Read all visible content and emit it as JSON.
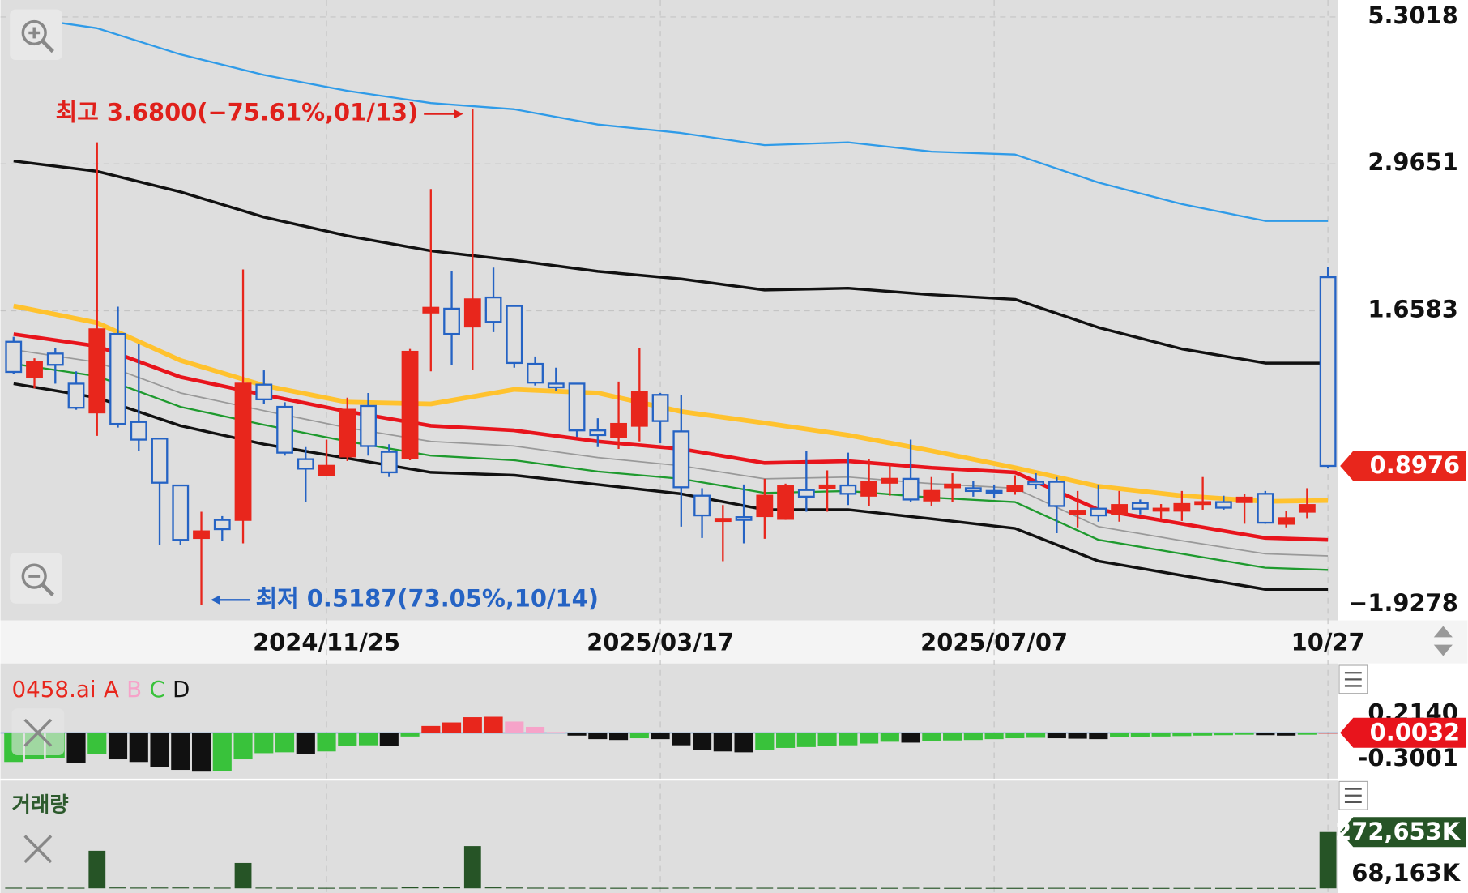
{
  "chart_data": [
    {
      "type": "candlestick",
      "log_scale": true,
      "grid": true,
      "up_color": "#e8261c",
      "down_color": "#2563c4",
      "categories": [
        null,
        null,
        null,
        null,
        null,
        null,
        null,
        null,
        null,
        null,
        null,
        null,
        null,
        null,
        null,
        "2024/11/25",
        null,
        null,
        null,
        null,
        null,
        null,
        null,
        null,
        null,
        null,
        null,
        null,
        null,
        null,
        null,
        "2025/03/17",
        null,
        null,
        null,
        null,
        null,
        null,
        null,
        null,
        null,
        null,
        null,
        null,
        null,
        null,
        null,
        "2025/07/07",
        null,
        null,
        null,
        null,
        null,
        null,
        null,
        null,
        null,
        null,
        null,
        null,
        null,
        null,
        null,
        "10/27"
      ],
      "open": [
        1.467,
        1.276,
        1.4,
        1.243,
        1.109,
        1.513,
        1.068,
        1.0,
        0.831,
        0.675,
        0.725,
        0.725,
        1.238,
        1.134,
        0.922,
        0.865,
        0.932,
        1.138,
        0.949,
        0.925,
        1.647,
        1.672,
        1.558,
        1.748,
        1.69,
        1.344,
        1.243,
        1.243,
        1.033,
        1.007,
        1.052,
        1.189,
        1.029,
        0.798,
        0.722,
        0.733,
        0.736,
        0.728,
        0.816,
        0.822,
        0.831,
        0.798,
        0.84,
        0.853,
        0.783,
        0.825,
        0.822,
        0.813,
        0.813,
        0.843,
        0.843,
        0.741,
        0.758,
        0.741,
        0.775,
        0.752,
        0.752,
        0.772,
        0.778,
        0.778,
        0.804,
        0.714,
        0.749,
        1.894
      ],
      "high": [
        1.496,
        1.374,
        1.431,
        1.305,
        3.229,
        1.685,
        1.452,
        1.0,
        0.831,
        0.749,
        0.736,
        1.953,
        1.31,
        1.155,
        0.967,
        0.996,
        1.176,
        1.198,
        0.978,
        1.426,
        2.684,
        1.938,
        3.68,
        1.967,
        1.69,
        1.384,
        1.324,
        1.243,
        1.084,
        1.253,
        1.431,
        1.198,
        1.189,
        0.822,
        0.769,
        0.834,
        0.853,
        0.837,
        0.953,
        0.882,
        0.946,
        0.922,
        0.904,
        0.996,
        0.859,
        0.872,
        0.846,
        0.834,
        0.865,
        0.872,
        0.859,
        0.813,
        0.834,
        0.813,
        0.786,
        0.772,
        0.813,
        0.859,
        0.798,
        0.804,
        0.813,
        0.752,
        0.822,
        1.974
      ],
      "low": [
        1.29,
        1.22,
        1.243,
        1.121,
        1.011,
        1.045,
        0.953,
        0.656,
        0.656,
        0.5187,
        0.668,
        0.661,
        1.147,
        0.935,
        0.778,
        0.862,
        0.915,
        0.935,
        0.859,
        0.918,
        1.305,
        1.339,
        1.314,
        1.524,
        1.324,
        1.234,
        1.207,
        1.007,
        0.967,
        0.96,
        0.989,
        0.982,
        0.706,
        0.675,
        0.616,
        0.661,
        0.673,
        0.725,
        0.749,
        0.749,
        0.769,
        0.766,
        0.798,
        0.778,
        0.766,
        0.778,
        0.795,
        0.792,
        0.801,
        0.819,
        0.688,
        0.704,
        0.72,
        0.72,
        0.741,
        0.725,
        0.722,
        0.755,
        0.755,
        0.714,
        0.714,
        0.704,
        0.73,
        0.892
      ],
      "close": [
        1.302,
        1.354,
        1.339,
        1.13,
        1.541,
        1.06,
        0.996,
        0.84,
        0.67,
        0.693,
        0.699,
        1.243,
        1.168,
        0.946,
        0.888,
        0.898,
        1.121,
        0.971,
        0.875,
        1.41,
        1.678,
        1.513,
        1.735,
        1.587,
        1.349,
        1.248,
        1.225,
        1.033,
        1.014,
        1.06,
        1.203,
        1.072,
        0.825,
        0.738,
        0.728,
        0.725,
        0.798,
        0.828,
        0.795,
        0.831,
        0.804,
        0.843,
        0.853,
        0.786,
        0.813,
        0.834,
        0.813,
        0.807,
        0.828,
        0.834,
        0.766,
        0.752,
        0.738,
        0.769,
        0.758,
        0.758,
        0.772,
        0.778,
        0.761,
        0.792,
        0.717,
        0.73,
        0.769,
        0.8976
      ],
      "series": [
        {
          "color": "#2f9be8",
          "x": [
            0,
            4,
            8,
            12,
            16,
            20,
            24,
            28,
            32,
            36,
            40,
            44,
            48,
            52,
            56,
            60,
            63
          ],
          "values": [
            5.32,
            5.072,
            4.571,
            4.215,
            3.958,
            3.772,
            3.68,
            3.464,
            3.351,
            3.193,
            3.229,
            3.112,
            3.077,
            2.754,
            2.529,
            2.366,
            2.366
          ]
        },
        {
          "color": "#111111",
          "x": [
            0,
            4,
            8,
            12,
            16,
            20,
            24,
            28,
            32,
            36,
            40,
            44,
            48,
            52,
            56,
            60,
            63
          ],
          "values": [
            2.999,
            2.879,
            2.654,
            2.402,
            2.23,
            2.102,
            2.025,
            1.938,
            1.881,
            1.8,
            1.813,
            1.767,
            1.735,
            1.552,
            1.426,
            1.348,
            1.348
          ]
        },
        {
          "color": "#ffc22e",
          "x": [
            0,
            4,
            8,
            12,
            16,
            20,
            24,
            28,
            32,
            36,
            40,
            44,
            48,
            52,
            56,
            60,
            63
          ],
          "values": [
            1.69,
            1.581,
            1.363,
            1.234,
            1.155,
            1.147,
            1.215,
            1.198,
            1.113,
            1.064,
            1.014,
            0.953,
            0.891,
            0.828,
            0.798,
            0.78,
            0.783
          ]
        },
        {
          "color": "#e8141c",
          "x": [
            0,
            4,
            8,
            12,
            16,
            20,
            24,
            28,
            32,
            36,
            40,
            44,
            48,
            52,
            56,
            60,
            63
          ],
          "values": [
            1.512,
            1.442,
            1.276,
            1.189,
            1.113,
            1.052,
            1.033,
            0.989,
            0.96,
            0.908,
            0.915,
            0.891,
            0.875,
            0.755,
            0.714,
            0.675,
            0.67
          ]
        },
        {
          "color": "#999999",
          "x": [
            0,
            4,
            8,
            12,
            16,
            20,
            24,
            28,
            32,
            36,
            40,
            44,
            48,
            52,
            56,
            60,
            63
          ],
          "values": [
            1.421,
            1.353,
            1.198,
            1.117,
            1.044,
            0.989,
            0.971,
            0.928,
            0.898,
            0.853,
            0.859,
            0.837,
            0.822,
            0.706,
            0.668,
            0.634,
            0.629
          ]
        },
        {
          "color": "#1e9a2e",
          "x": [
            0,
            4,
            8,
            12,
            16,
            20,
            24,
            28,
            32,
            36,
            40,
            44,
            48,
            52,
            56,
            60,
            63
          ],
          "values": [
            1.344,
            1.28,
            1.134,
            1.056,
            0.989,
            0.935,
            0.918,
            0.878,
            0.853,
            0.807,
            0.813,
            0.792,
            0.778,
            0.67,
            0.634,
            0.6,
            0.595
          ]
        },
        {
          "color": "#111111",
          "x": [
            0,
            4,
            8,
            12,
            16,
            20,
            24,
            28,
            32,
            36,
            40,
            44,
            48,
            52,
            56,
            60,
            63
          ],
          "values": [
            1.243,
            1.176,
            1.052,
            0.978,
            0.925,
            0.875,
            0.865,
            0.834,
            0.804,
            0.755,
            0.755,
            0.728,
            0.701,
            0.616,
            0.582,
            0.551,
            0.551
          ]
        }
      ],
      "ylim": [
        0.491,
        5.67
      ],
      "yticks": [
        5.3018,
        2.9651,
        1.6583
      ],
      "ylabel_bottom": "−1.9278",
      "annotations": [
        {
          "text": "최고 3.6800(−75.61%,01/13)",
          "color": "#e0201b"
        },
        {
          "text": "최저 0.5187(73.05%,10/14)",
          "color": "#2563c4"
        }
      ]
    },
    {
      "type": "bar",
      "title": "0458.ai",
      "grid": true,
      "legend": [
        {
          "label": "A",
          "color": "#e8261c"
        },
        {
          "label": "B",
          "color": "#f6a3c9"
        },
        {
          "label": "C",
          "color": "#39c23b"
        },
        {
          "label": "D",
          "color": "#111111"
        }
      ],
      "values": [
        -0.33,
        -0.3,
        -0.29,
        -0.34,
        -0.24,
        -0.3,
        -0.33,
        -0.39,
        -0.42,
        -0.44,
        -0.43,
        -0.3,
        -0.23,
        -0.22,
        -0.24,
        -0.21,
        -0.15,
        -0.14,
        -0.15,
        -0.04,
        0.08,
        0.12,
        0.18,
        0.185,
        0.13,
        0.07,
        0.01,
        -0.03,
        -0.07,
        -0.08,
        -0.06,
        -0.07,
        -0.14,
        -0.19,
        -0.21,
        -0.22,
        -0.19,
        -0.17,
        -0.16,
        -0.15,
        -0.14,
        -0.12,
        -0.1,
        -0.11,
        -0.09,
        -0.085,
        -0.08,
        -0.07,
        -0.06,
        -0.055,
        -0.06,
        -0.065,
        -0.07,
        -0.05,
        -0.045,
        -0.04,
        -0.035,
        -0.03,
        -0.025,
        -0.02,
        -0.025,
        -0.03,
        -0.02,
        0.0032
      ],
      "ylim": [
        -0.51,
        0.75
      ],
      "yticks": [
        {
          "value": 0.214,
          "label": "0.2140"
        },
        -0.3001
      ],
      "tag_color": "#e8141c"
    },
    {
      "type": "bar",
      "title": "거래량",
      "color": "#265426",
      "title_color": "#2d5a2d",
      "values": [
        3200,
        2800,
        3500,
        3000,
        181769,
        4200,
        3600,
        3900,
        4100,
        3800,
        3300,
        122694,
        3600,
        3100,
        2900,
        2700,
        3000,
        3400,
        2800,
        4800,
        6200,
        5400,
        204490,
        4600,
        3900,
        3200,
        2900,
        3100,
        2600,
        2500,
        2800,
        2700,
        3300,
        3600,
        3100,
        2900,
        3000,
        2800,
        2600,
        2700,
        2500,
        2600,
        2400,
        3000,
        2300,
        2200,
        2400,
        2300,
        2100,
        2200,
        2600,
        2400,
        2300,
        2200,
        2100,
        2000,
        2100,
        2300,
        2000,
        1900,
        2100,
        2200,
        2000,
        272653
      ],
      "value_labels": [
        null,
        null,
        null,
        null,
        null,
        null,
        null,
        null,
        null,
        null,
        null,
        null,
        null,
        null,
        null,
        null,
        null,
        null,
        null,
        null,
        null,
        null,
        null,
        null,
        null,
        null,
        null,
        null,
        null,
        null,
        null,
        null,
        null,
        null,
        null,
        null,
        null,
        null,
        null,
        null,
        null,
        null,
        null,
        null,
        null,
        null,
        null,
        null,
        null,
        null,
        null,
        null,
        null,
        null,
        null,
        null,
        null,
        null,
        null,
        null,
        null,
        null,
        null,
        "272,653K"
      ],
      "ylim": [
        0,
        490000
      ],
      "yticks": [
        {
          "value": 68163,
          "label": "68,163K"
        }
      ]
    }
  ]
}
